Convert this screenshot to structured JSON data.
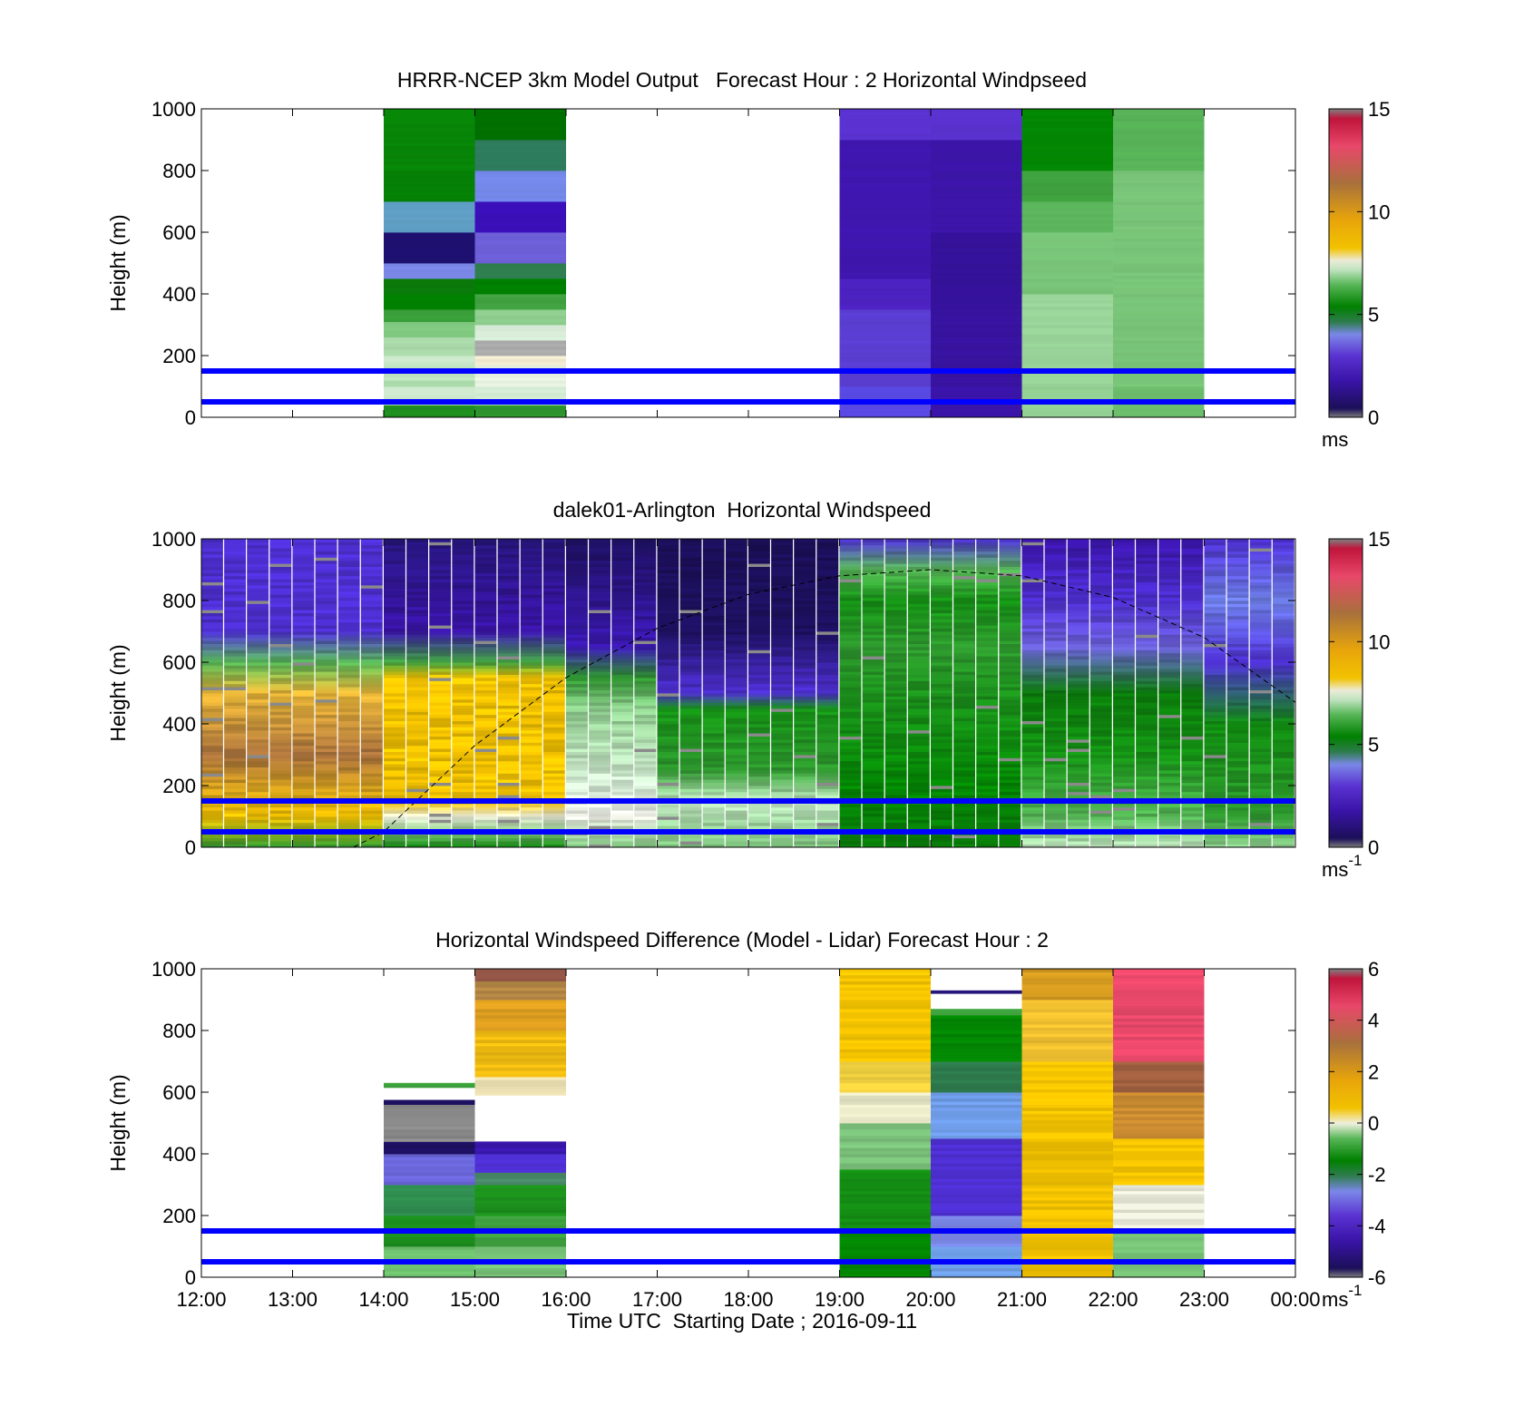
{
  "chart_data": [
    {
      "type": "heatmap",
      "title": "HRRR-NCEP 3km Model Output   Forecast Hour : 2 Horizontal Windpseed",
      "ylabel": "Height (m)",
      "ylim": [
        0,
        1000
      ],
      "yticks": [
        "0",
        "200",
        "400",
        "600",
        "800",
        "1000"
      ],
      "xlim": [
        "12:00",
        "00:00"
      ],
      "colorbar": {
        "ticks": [
          "0",
          "5",
          "10",
          "15"
        ],
        "range": [
          0,
          15
        ],
        "units": "ms",
        "units_sup": ""
      },
      "reference_lines_m": [
        50,
        150
      ],
      "columns": [
        {
          "start": "14:00",
          "end": "15:00",
          "bottom": 20,
          "cells": [
            [
              "0-40",
              "#1f8f1f"
            ],
            [
              "40-100",
              "#cfe9cf"
            ],
            [
              "100-120",
              "#a9d8a9"
            ],
            [
              "120-170",
              "#bfe3bf"
            ],
            [
              "170-200",
              "#cdeacd"
            ],
            [
              "200-260",
              "#a9d8a9"
            ],
            [
              "260-310",
              "#7fc77f"
            ],
            [
              "310-350",
              "#3aa03a"
            ],
            [
              "350-400",
              "#008000"
            ],
            [
              "400-450",
              "#0a7a0a"
            ],
            [
              "450-500",
              "#7b88e8"
            ],
            [
              "500-600",
              "#1d1070"
            ],
            [
              "600-700",
              "#5f9ec4"
            ],
            [
              "700-800",
              "#058005"
            ],
            [
              "800-1000",
              "#078507"
            ]
          ]
        },
        {
          "start": "15:00",
          "end": "16:00",
          "bottom": 20,
          "cells": [
            [
              "0-40",
              "#2e962e"
            ],
            [
              "40-100",
              "#d4ebd4"
            ],
            [
              "100-170",
              "#e8f2e0"
            ],
            [
              "170-200",
              "#f3ecd2"
            ],
            [
              "200-250",
              "#ababab"
            ],
            [
              "250-300",
              "#d8ecd8"
            ],
            [
              "300-350",
              "#8fce8f"
            ],
            [
              "350-400",
              "#41a341"
            ],
            [
              "400-450",
              "#008000"
            ],
            [
              "450-500",
              "#2e7c4e"
            ],
            [
              "500-600",
              "#6d5fd7"
            ],
            [
              "600-700",
              "#3a10b8"
            ],
            [
              "700-800",
              "#7488ea"
            ],
            [
              "800-900",
              "#2e7c5e"
            ],
            [
              "900-1000",
              "#007000"
            ]
          ]
        },
        {
          "start": "19:00",
          "end": "20:00",
          "bottom": 20,
          "cells": [
            [
              "0-100",
              "#5848e0"
            ],
            [
              "100-350",
              "#5a3ed2"
            ],
            [
              "350-450",
              "#4d22c2"
            ],
            [
              "450-900",
              "#3f16ae"
            ],
            [
              "900-1000",
              "#5a32d0"
            ]
          ]
        },
        {
          "start": "20:00",
          "end": "21:00",
          "bottom": 20,
          "cells": [
            [
              "0-100",
              "#3a14a8"
            ],
            [
              "100-350",
              "#3813a0"
            ],
            [
              "350-600",
              "#35129a"
            ],
            [
              "600-900",
              "#3c15a8"
            ],
            [
              "900-1000",
              "#5a32d0"
            ]
          ]
        },
        {
          "start": "21:00",
          "end": "22:00",
          "bottom": 20,
          "cells": [
            [
              "0-100",
              "#93d093"
            ],
            [
              "100-400",
              "#9ad59a"
            ],
            [
              "400-600",
              "#78c478"
            ],
            [
              "600-700",
              "#5cb55c"
            ],
            [
              "700-800",
              "#3fa23f"
            ],
            [
              "800-1000",
              "#038703"
            ]
          ]
        },
        {
          "start": "22:00",
          "end": "23:00",
          "bottom": 20,
          "cells": [
            [
              "0-100",
              "#6cbd6c"
            ],
            [
              "100-800",
              "#78c478"
            ],
            [
              "800-1000",
              "#58b358"
            ]
          ]
        }
      ]
    },
    {
      "type": "heatmap",
      "title": "dalek01-Arlington  Horizontal Windspeed",
      "ylabel": "Height (m)",
      "ylim": [
        0,
        1000
      ],
      "yticks": [
        "0",
        "200",
        "400",
        "600",
        "800",
        "1000"
      ],
      "xlim": [
        "12:00",
        "00:00"
      ],
      "colorbar": {
        "ticks": [
          "0",
          "5",
          "10",
          "15"
        ],
        "range": [
          0,
          15
        ],
        "units": "ms",
        "units_sup": "-1"
      },
      "reference_lines_m": [
        50,
        150
      ],
      "overlay_curve": {
        "style": "dashed",
        "points": [
          [
            "13:40",
            0
          ],
          [
            "14:00",
            50
          ],
          [
            "15:00",
            330
          ],
          [
            "16:00",
            550
          ],
          [
            "17:00",
            710
          ],
          [
            "18:00",
            820
          ],
          [
            "19:00",
            880
          ],
          [
            "20:00",
            900
          ],
          [
            "21:00",
            880
          ],
          [
            "22:00",
            810
          ],
          [
            "23:00",
            680
          ],
          [
            "00:00",
            470
          ]
        ]
      },
      "profiles": [
        {
          "start": "12:00",
          "end": "14:00",
          "levels": [
            [
              0,
              "#2e962e"
            ],
            [
              100,
              "#f2c200"
            ],
            [
              300,
              "#a8713c"
            ],
            [
              500,
              "#e6b436"
            ],
            [
              600,
              "#55b555"
            ],
            [
              700,
              "#4d2fd0"
            ],
            [
              1000,
              "#4d2fd0"
            ]
          ]
        },
        {
          "start": "14:00",
          "end": "16:00",
          "levels": [
            [
              0,
              "#0f8a0f"
            ],
            [
              100,
              "#e8ead8"
            ],
            [
              150,
              "#f2c200"
            ],
            [
              400,
              "#f0c000"
            ],
            [
              550,
              "#f2c200"
            ],
            [
              600,
              "#3fa23f"
            ],
            [
              700,
              "#3a14a8"
            ],
            [
              1000,
              "#26157a"
            ]
          ]
        },
        {
          "start": "16:00",
          "end": "17:00",
          "levels": [
            [
              0,
              "#7cc27c"
            ],
            [
              100,
              "#e8e8e0"
            ],
            [
              200,
              "#d4ebd4"
            ],
            [
              450,
              "#8fce8f"
            ],
            [
              550,
              "#2e962e"
            ],
            [
              650,
              "#3a18b0"
            ],
            [
              1000,
              "#1d1060"
            ]
          ]
        },
        {
          "start": "17:00",
          "end": "19:00",
          "levels": [
            [
              0,
              "#7cc27c"
            ],
            [
              150,
              "#bfe3bf"
            ],
            [
              250,
              "#2e962e"
            ],
            [
              450,
              "#149014"
            ],
            [
              500,
              "#4d2fd0"
            ],
            [
              700,
              "#1d1060"
            ],
            [
              1000,
              "#1b0f58"
            ]
          ]
        },
        {
          "start": "19:00",
          "end": "21:00",
          "levels": [
            [
              0,
              "#0a7a0a"
            ],
            [
              200,
              "#038703"
            ],
            [
              500,
              "#1c901c"
            ],
            [
              650,
              "#2e962e"
            ],
            [
              800,
              "#149014"
            ],
            [
              900,
              "#55b555"
            ],
            [
              1000,
              "#4d2fd0"
            ]
          ]
        },
        {
          "start": "21:00",
          "end": "23:00",
          "levels": [
            [
              0,
              "#bfe3bf"
            ],
            [
              100,
              "#55b555"
            ],
            [
              300,
              "#149014"
            ],
            [
              500,
              "#0a7a0a"
            ],
            [
              650,
              "#6a5fd5"
            ],
            [
              800,
              "#4d2fd0"
            ],
            [
              1000,
              "#3a14a8"
            ]
          ]
        },
        {
          "start": "23:00",
          "end": "00:00",
          "levels": [
            [
              0,
              "#8fce8f"
            ],
            [
              100,
              "#2e962e"
            ],
            [
              400,
              "#0f8a0f"
            ],
            [
              600,
              "#4d2fd0"
            ],
            [
              800,
              "#6d7ee6"
            ],
            [
              1000,
              "#4d2fd0"
            ]
          ]
        }
      ]
    },
    {
      "type": "heatmap",
      "title": "Horizontal Windspeed Difference (Model - Lidar) Forecast Hour : 2",
      "xlabel": "Time UTC  Starting Date ; 2016-09-11",
      "ylabel": "Height (m)",
      "ylim": [
        0,
        1000
      ],
      "yticks": [
        "0",
        "200",
        "400",
        "600",
        "800",
        "1000"
      ],
      "xticks": [
        "12:00",
        "13:00",
        "14:00",
        "15:00",
        "16:00",
        "17:00",
        "18:00",
        "19:00",
        "20:00",
        "21:00",
        "22:00",
        "23:00",
        "00:00"
      ],
      "xlim": [
        "12:00",
        "00:00"
      ],
      "colorbar": {
        "ticks": [
          "-6",
          "-4",
          "-2",
          "0",
          "2",
          "4",
          "6"
        ],
        "range": [
          -6,
          6
        ],
        "units": "ms",
        "units_sup": "-1"
      },
      "reference_lines_m": [
        50,
        150
      ],
      "columns": [
        {
          "start": "14:00",
          "end": "15:00",
          "bottom": 0,
          "cells": [
            [
              "0-100",
              "#6cbd6c"
            ],
            [
              "100-200",
              "#1c901c"
            ],
            [
              "200-300",
              "#2e8a4e"
            ],
            [
              "300-400",
              "#6a66d8"
            ],
            [
              "400-440",
              "#1d1060"
            ],
            [
              "440-560",
              "#8a8a8a"
            ],
            [
              "560-575",
              "#1d1060"
            ],
            [
              "615-630",
              "#3aa03a"
            ]
          ]
        },
        {
          "start": "15:00",
          "end": "16:00",
          "bottom": 0,
          "cells": [
            [
              "0-100",
              "#78c478"
            ],
            [
              "100-200",
              "#3fa23f"
            ],
            [
              "200-300",
              "#1c901c"
            ],
            [
              "300-340",
              "#4a8a6a"
            ],
            [
              "340-400",
              "#4d2fd0"
            ],
            [
              "400-440",
              "#3a18b0"
            ],
            [
              "590-650",
              "#e8ddb0"
            ],
            [
              "650-800",
              "#f0bc10"
            ],
            [
              "800-900",
              "#e0a020"
            ],
            [
              "900-960",
              "#b58846"
            ],
            [
              "960-1000",
              "#9a5a4a"
            ]
          ]
        },
        {
          "start": "19:00",
          "end": "20:00",
          "bottom": 0,
          "cells": [
            [
              "0-150",
              "#038703"
            ],
            [
              "150-350",
              "#149014"
            ],
            [
              "350-500",
              "#7cc27c"
            ],
            [
              "500-600",
              "#e8e8c8"
            ],
            [
              "600-700",
              "#f0d040"
            ],
            [
              "700-1000",
              "#f2c200"
            ]
          ]
        },
        {
          "start": "20:00",
          "end": "21:00",
          "bottom": 0,
          "cells": [
            [
              "0-100",
              "#6fa0e8"
            ],
            [
              "100-200",
              "#7b88e8"
            ],
            [
              "200-450",
              "#4d2fd0"
            ],
            [
              "450-600",
              "#6f9ce8"
            ],
            [
              "600-700",
              "#2e7c4e"
            ],
            [
              "700-850",
              "#038703"
            ],
            [
              "850-870",
              "#3fa23f"
            ],
            [
              "920-930",
              "#26157a"
            ]
          ]
        },
        {
          "start": "21:00",
          "end": "22:00",
          "bottom": 0,
          "cells": [
            [
              "0-100",
              "#f2c200"
            ],
            [
              "100-700",
              "#f2c200"
            ],
            [
              "700-900",
              "#f0c030"
            ],
            [
              "900-1000",
              "#d49a20"
            ]
          ]
        },
        {
          "start": "22:00",
          "end": "23:00",
          "bottom": 0,
          "cells": [
            [
              "0-150",
              "#78c478"
            ],
            [
              "150-300",
              "#e8e8d8"
            ],
            [
              "300-450",
              "#f2c200"
            ],
            [
              "450-600",
              "#c88a30"
            ],
            [
              "600-700",
              "#a06040"
            ],
            [
              "700-1000",
              "#e8486a"
            ]
          ]
        }
      ]
    }
  ]
}
